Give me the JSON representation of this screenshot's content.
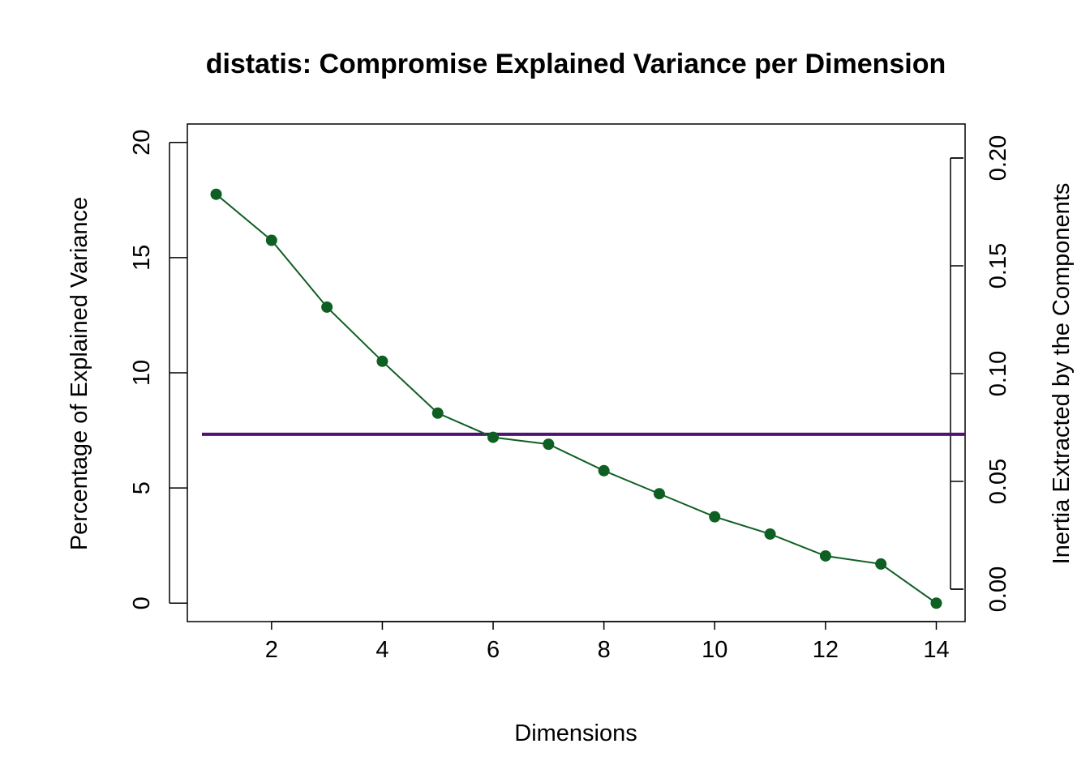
{
  "chart_data": {
    "type": "line",
    "title": "distatis: Compromise Explained Variance per Dimension",
    "xlabel": "Dimensions",
    "ylabel": "Percentage of Explained Variance",
    "y2label": "Inertia Extracted by the Components",
    "xlim": [
      0.48,
      14.52
    ],
    "ylim": [
      -0.8,
      20.8
    ],
    "x_ticks": [
      2,
      4,
      6,
      8,
      10,
      12,
      14
    ],
    "y_ticks": [
      0,
      5,
      10,
      15,
      20
    ],
    "y2_ticks": [
      "0.00",
      "0.05",
      "0.10",
      "0.15",
      "0.20"
    ],
    "y2_range": [
      0,
      0.2
    ],
    "series": [
      {
        "x": [
          1,
          2,
          3,
          4,
          5,
          6,
          7,
          8,
          9,
          10,
          11,
          12,
          13,
          14
        ],
        "values": [
          17.75,
          15.75,
          12.85,
          10.5,
          8.25,
          7.2,
          6.9,
          5.75,
          4.75,
          3.75,
          3.0,
          2.05,
          1.7,
          0.0
        ],
        "color": "#0e5f22"
      }
    ],
    "reference_line": {
      "value": 7.33,
      "color": "#4f146f"
    },
    "grid": false,
    "legend": "none"
  }
}
